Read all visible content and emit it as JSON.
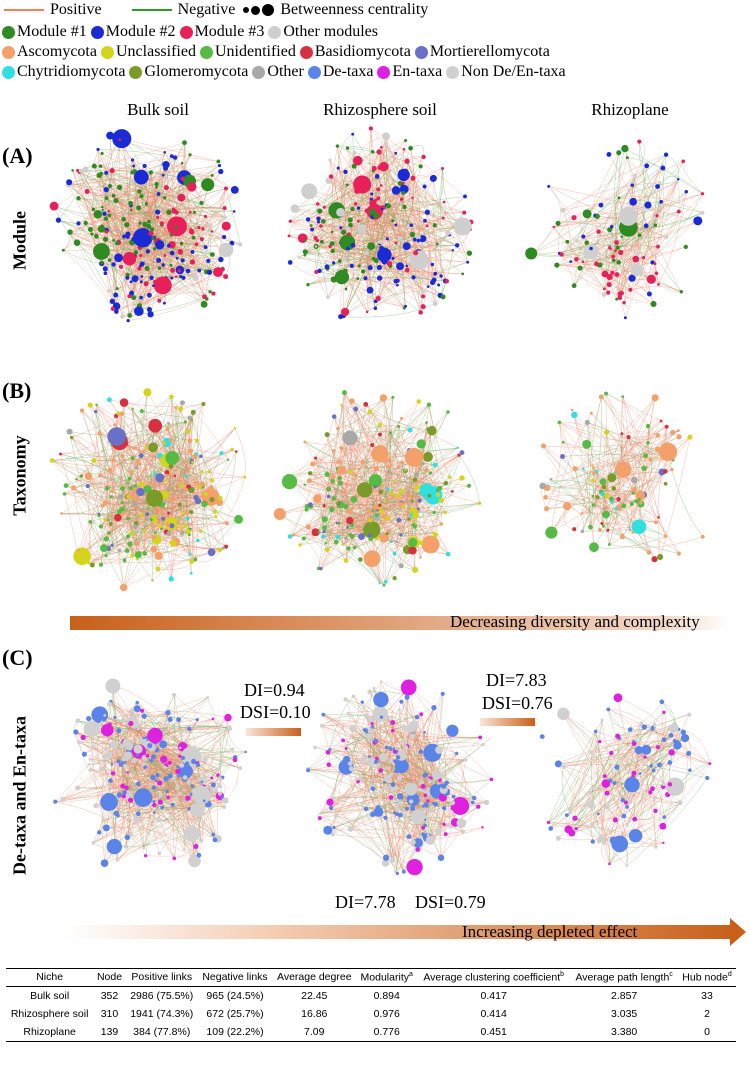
{
  "legend": {
    "positive": "Positive",
    "negative": "Negative",
    "betweenness": "Betweenness centrality",
    "row2": [
      {
        "label": "Module #1",
        "color": "#2e8b22"
      },
      {
        "label": "Module #2",
        "color": "#1a2bd6"
      },
      {
        "label": "Module #3",
        "color": "#e8205a"
      },
      {
        "label": "Other modules",
        "color": "#cfcfcf"
      }
    ],
    "row3": [
      {
        "label": "Ascomycota",
        "color": "#f4a06a"
      },
      {
        "label": "Unclassified",
        "color": "#d4d41c"
      },
      {
        "label": "Unidentified",
        "color": "#55bb44"
      },
      {
        "label": "Basidiomycota",
        "color": "#d83040"
      },
      {
        "label": "Mortierellomycota",
        "color": "#6870c8"
      }
    ],
    "row4": [
      {
        "label": "Chytridiomycota",
        "color": "#30e0e0"
      },
      {
        "label": "Glomeromycota",
        "color": "#7a9a2a"
      },
      {
        "label": "Other",
        "color": "#a8a8a8"
      },
      {
        "label": "De-taxa",
        "color": "#5b84e8"
      },
      {
        "label": "En-taxa",
        "color": "#e020e0"
      },
      {
        "label": "Non De/En-taxa",
        "color": "#d0d0d0"
      }
    ],
    "positive_color": "#f08060",
    "negative_color": "#2a9a2a"
  },
  "columns": [
    "Bulk soil",
    "Rhizosphere soil",
    "Rhizoplane"
  ],
  "panels": {
    "a": {
      "letter": "(A)",
      "row_label": "Module"
    },
    "b": {
      "letter": "(B)",
      "row_label": "Taxonomy"
    },
    "c": {
      "letter": "(C)",
      "row_label": "De-taxa and En-taxa"
    }
  },
  "arrows": {
    "decreasing": "Decreasing diversity and complexity",
    "increasing": "Increasing depleted effect"
  },
  "annotations": {
    "bulk_rhizo": {
      "di": "DI=0.94",
      "dsi": "DSI=0.10"
    },
    "rhizo_plane": {
      "di": "DI=7.83",
      "dsi": "DSI=0.76"
    },
    "bulk_plane": {
      "di": "DI=7.78",
      "dsi": "DSI=0.79"
    }
  },
  "table": {
    "headers": [
      "Niche",
      "Node",
      "Positive links",
      "Negative links",
      "Average degree",
      "Modularity",
      "Average clustering coefficient",
      "Average path length",
      "Hub node"
    ],
    "header_sup": [
      "",
      "",
      "",
      "",
      "",
      "a",
      "b",
      "c",
      "d"
    ],
    "rows": [
      [
        "Bulk soil",
        "352",
        "2986 (75.5%)",
        "965 (24.5%)",
        "22.45",
        "0.894",
        "0.417",
        "2.857",
        "33"
      ],
      [
        "Rhizosphere soil",
        "310",
        "1941 (74.3%)",
        "672 (25.7%)",
        "16.86",
        "0.976",
        "0.414",
        "3.035",
        "2"
      ],
      [
        "Rhizoplane",
        "139",
        "384 (77.8%)",
        "109 (22.2%)",
        "7.09",
        "0.776",
        "0.451",
        "3.380",
        "0"
      ]
    ]
  }
}
